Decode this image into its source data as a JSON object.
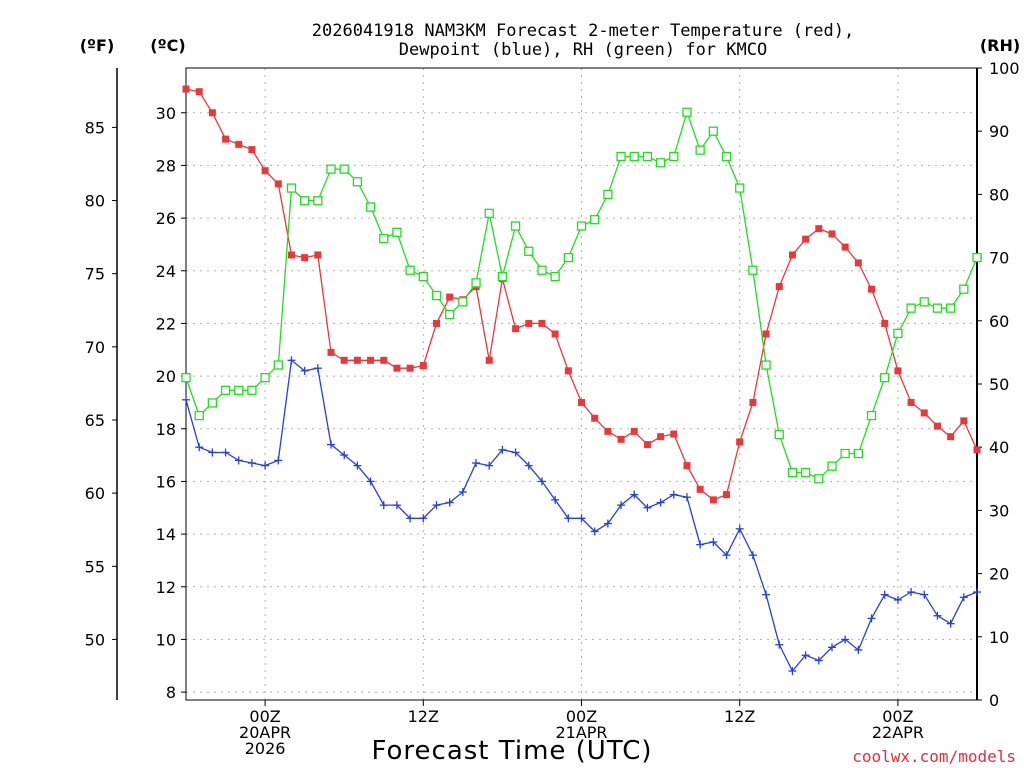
{
  "title_lines": [
    "2026041918 NAM3KM Forecast 2-meter Temperature (red),",
    "Dewpoint (blue), RH (green) for KMCO"
  ],
  "units": {
    "fahrenheit": "(ºF)",
    "celsius": "(ºC)",
    "rh": "(RH)"
  },
  "xlabel": "Forecast Time (UTC)",
  "credit": "coolwx.com/models",
  "colors": {
    "temperature": "#e8383c",
    "dewpoint": "#2b3fd6",
    "rh": "#22dd22",
    "axis": "#000000",
    "grid": "#b0b0b0"
  },
  "chart_data": {
    "type": "line",
    "x_unit": "forecast hour",
    "x_range": [
      0,
      60
    ],
    "x_ticks": [
      {
        "hour": 6,
        "lines": [
          "00Z",
          "20APR",
          "2026"
        ]
      },
      {
        "hour": 18,
        "lines": [
          "12Z"
        ]
      },
      {
        "hour": 30,
        "lines": [
          "00Z",
          "21APR"
        ]
      },
      {
        "hour": 42,
        "lines": [
          "12Z"
        ]
      },
      {
        "hour": 54,
        "lines": [
          "00Z",
          "22APR"
        ]
      }
    ],
    "y_left_c": {
      "range": [
        7.7,
        31.7
      ],
      "ticks": [
        8,
        10,
        12,
        14,
        16,
        18,
        20,
        22,
        24,
        26,
        28,
        30
      ]
    },
    "y_left_f": {
      "ticks": [
        50,
        55,
        60,
        65,
        70,
        75,
        80,
        85
      ]
    },
    "y_right_rh": {
      "range": [
        0,
        100
      ],
      "ticks": [
        0,
        10,
        20,
        30,
        40,
        50,
        60,
        70,
        80,
        90,
        100
      ]
    },
    "grid": true,
    "series": [
      {
        "key": "temperature",
        "axis": "celsius",
        "marker": "filled-square",
        "values": [
          30.9,
          30.8,
          30.0,
          29.0,
          28.8,
          28.6,
          27.8,
          27.3,
          24.6,
          24.5,
          24.6,
          20.9,
          20.6,
          20.6,
          20.6,
          20.6,
          20.3,
          20.3,
          20.4,
          22.0,
          23.0,
          22.9,
          23.4,
          20.6,
          23.7,
          21.8,
          22.0,
          22.0,
          21.6,
          20.2,
          19.0,
          18.4,
          17.9,
          17.6,
          17.9,
          17.4,
          17.7,
          17.8,
          16.6,
          15.7,
          15.3,
          15.5,
          17.5,
          19.0,
          21.6,
          23.4,
          24.6,
          25.2,
          25.6,
          25.4,
          24.9,
          24.3,
          23.3,
          22.0,
          20.2,
          19.0,
          18.6,
          18.1,
          17.7,
          18.3,
          17.2
        ]
      },
      {
        "key": "dewpoint",
        "axis": "celsius",
        "marker": "plus",
        "values": [
          19.1,
          17.3,
          17.1,
          17.1,
          16.8,
          16.7,
          16.6,
          16.8,
          20.6,
          20.2,
          20.3,
          17.4,
          17.0,
          16.6,
          16.0,
          15.1,
          15.1,
          14.6,
          14.6,
          15.1,
          15.2,
          15.6,
          16.7,
          16.6,
          17.2,
          17.1,
          16.6,
          16.0,
          15.3,
          14.6,
          14.6,
          14.1,
          14.4,
          15.1,
          15.5,
          15.0,
          15.2,
          15.5,
          15.4,
          13.6,
          13.7,
          13.2,
          14.2,
          13.2,
          11.7,
          9.8,
          8.8,
          9.4,
          9.2,
          9.7,
          10.0,
          9.6,
          10.8,
          11.7,
          11.5,
          11.8,
          11.7,
          10.9,
          10.6,
          11.6,
          11.8
        ]
      },
      {
        "key": "rh",
        "axis": "rh",
        "marker": "open-square",
        "values": [
          51,
          45,
          47,
          49,
          49,
          49,
          51,
          53,
          81,
          79,
          79,
          84,
          84,
          82,
          78,
          73,
          74,
          68,
          67,
          64,
          61,
          63,
          66,
          77,
          67,
          75,
          71,
          68,
          67,
          70,
          75,
          76,
          80,
          86,
          86,
          86,
          85,
          86,
          93,
          87,
          90,
          86,
          81,
          68,
          53,
          42,
          36,
          36,
          35,
          37,
          39,
          39,
          45,
          51,
          58,
          62,
          63,
          62,
          62,
          65,
          70
        ]
      }
    ]
  }
}
